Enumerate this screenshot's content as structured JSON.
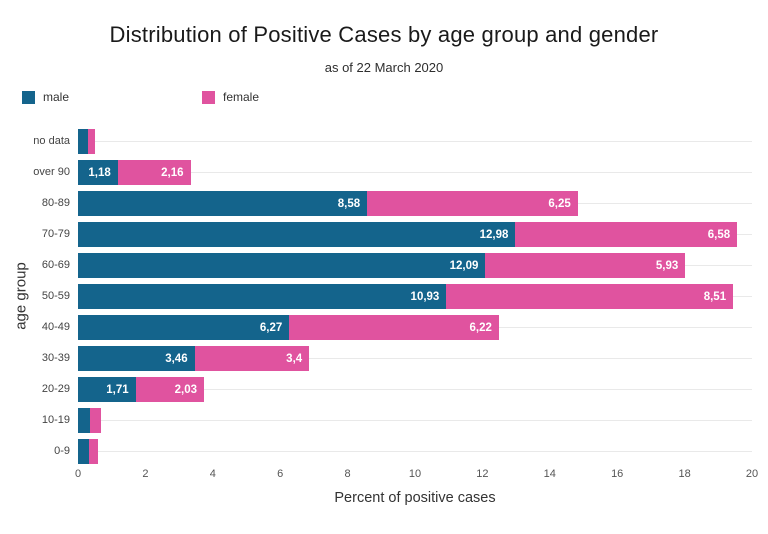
{
  "title": "Distribution of Positive Cases by age group and gender",
  "subtitle": "as of 22 March 2020",
  "legend": {
    "male_label": "male",
    "female_label": "female"
  },
  "colors": {
    "male": "#14648c",
    "female": "#e0539f",
    "gridline": "#e9e9e9",
    "bar_label_text": "#ffffff"
  },
  "axes": {
    "x_title": "Percent of positive cases",
    "y_title": "age group",
    "x_ticks": [
      0,
      2,
      4,
      6,
      8,
      10,
      12,
      14,
      16,
      18,
      20
    ],
    "x_range": [
      0,
      20
    ]
  },
  "chart_data": {
    "type": "bar",
    "orientation": "horizontal",
    "stacked": true,
    "title": "Distribution of Positive Cases by age group and gender",
    "subtitle": "as of 22 March 2020",
    "xlabel": "Percent of positive cases",
    "ylabel": "age group",
    "xlim": [
      0,
      20
    ],
    "grid": "horizontal",
    "legend_position": "top-left",
    "categories": [
      "no data",
      "over 90",
      "80-89",
      "70-79",
      "60-69",
      "50-59",
      "40-49",
      "30-39",
      "20-29",
      "10-19",
      "0-9"
    ],
    "series": [
      {
        "name": "male",
        "color": "#14648c",
        "values": [
          0.3,
          1.18,
          8.58,
          12.98,
          12.09,
          10.93,
          6.27,
          3.46,
          1.71,
          0.35,
          0.32
        ],
        "labels": [
          "",
          "1,18",
          "8,58",
          "12,98",
          "12,09",
          "10,93",
          "6,27",
          "3,46",
          "1,71",
          "",
          ""
        ]
      },
      {
        "name": "female",
        "color": "#e0539f",
        "values": [
          0.2,
          2.16,
          6.25,
          6.58,
          5.93,
          8.51,
          6.22,
          3.4,
          2.03,
          0.33,
          0.26
        ],
        "labels": [
          "",
          "2,16",
          "6,25",
          "6,58",
          "5,93",
          "8,51",
          "6,22",
          "3,4",
          "2,03",
          "",
          ""
        ]
      }
    ]
  }
}
